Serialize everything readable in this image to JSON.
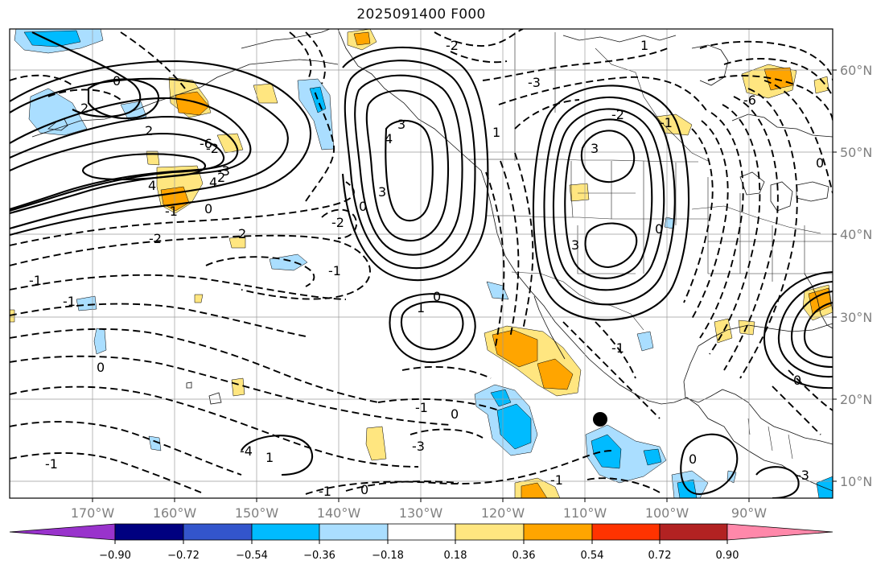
{
  "title": "2025091400 F000",
  "axes": {
    "lon_labels": [
      "170°W",
      "160°W",
      "150°W",
      "140°W",
      "130°W",
      "120°W",
      "110°W",
      "100°W",
      "90°W"
    ],
    "lat_labels": [
      "60°N",
      "50°N",
      "40°N",
      "30°N",
      "20°N",
      "10°N"
    ]
  },
  "colorbar": {
    "ticks": [
      "−0.90",
      "−0.72",
      "−0.54",
      "−0.36",
      "−0.18",
      "0.18",
      "0.36",
      "0.54",
      "0.72",
      "0.90"
    ],
    "colors": [
      "#9933cc",
      "#000080",
      "#3355cc",
      "#00bbff",
      "#aadeff",
      "#ffffff",
      "#ffe680",
      "#ffa500",
      "#ff3300",
      "#b22222",
      "#ff88aa"
    ]
  },
  "contour_labels": {
    "c1": "2",
    "c2": "0",
    "c3": "2",
    "c4": "-2",
    "c5": "2",
    "c6": "4",
    "c7": "4",
    "c8": "-3",
    "c9": "2",
    "c10": "-1",
    "c11": "0",
    "c12": "-2",
    "c13": "-1",
    "c14": "3",
    "c15": "4",
    "c16": "3",
    "c17": "-2",
    "c18": "0",
    "c19": "1",
    "c20": "-1",
    "c21": "0",
    "c22": "0",
    "c23": "-1",
    "c24": "0",
    "c25": "-1",
    "c26": "-1",
    "c27": "0",
    "c28": "-1",
    "c29": "1",
    "c30": "-4",
    "c31": "-3",
    "c32": "-1",
    "c33": "3",
    "c34": "3",
    "c35": "0",
    "c36": "-2",
    "c37": "1",
    "c38": "-3",
    "c39": "-6",
    "c40": "1",
    "c41": "0",
    "c42": "-1",
    "c43": "-1",
    "c44": "0",
    "c45": "-6",
    "c46": "-2",
    "c47": "0",
    "c48": "-3"
  },
  "marker": {
    "label": "storm-center"
  }
}
